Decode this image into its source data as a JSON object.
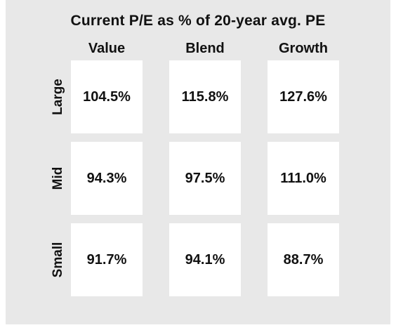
{
  "chart_data": {
    "type": "table",
    "title": "Current P/E as % of 20-year avg. PE",
    "columns": [
      "Value",
      "Blend",
      "Growth"
    ],
    "rows": [
      {
        "label": "Large",
        "values": [
          104.5,
          115.8,
          127.6
        ],
        "display": [
          "104.5%",
          "115.8%",
          "127.6%"
        ]
      },
      {
        "label": "Mid",
        "values": [
          94.3,
          97.5,
          111.0
        ],
        "display": [
          "94.3%",
          "97.5%",
          "111.0%"
        ]
      },
      {
        "label": "Small",
        "values": [
          91.7,
          94.1,
          88.7
        ],
        "display": [
          "91.7%",
          "94.1%",
          "88.7%"
        ]
      }
    ],
    "unit": "%"
  },
  "colors": {
    "panel_background": "#e8e8e8",
    "cell_background": "#ffffff",
    "text": "#111111"
  }
}
